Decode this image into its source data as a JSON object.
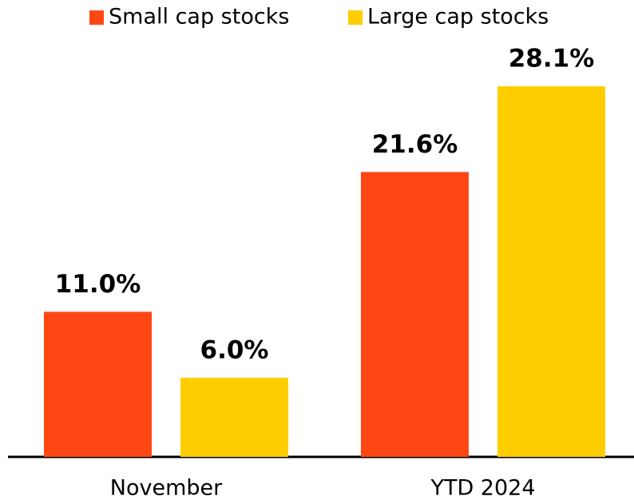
{
  "chart_data": {
    "type": "bar",
    "categories": [
      "November",
      "YTD 2024"
    ],
    "series": [
      {
        "name": "Small cap stocks",
        "color": "#ff4713",
        "values": [
          11.0,
          21.6
        ],
        "value_labels": [
          "11.0%",
          "21.6%"
        ]
      },
      {
        "name": "Large cap stocks",
        "color": "#ffce00",
        "values": [
          6.0,
          28.1
        ],
        "value_labels": [
          "6.0%",
          "28.1%"
        ]
      }
    ]
  }
}
